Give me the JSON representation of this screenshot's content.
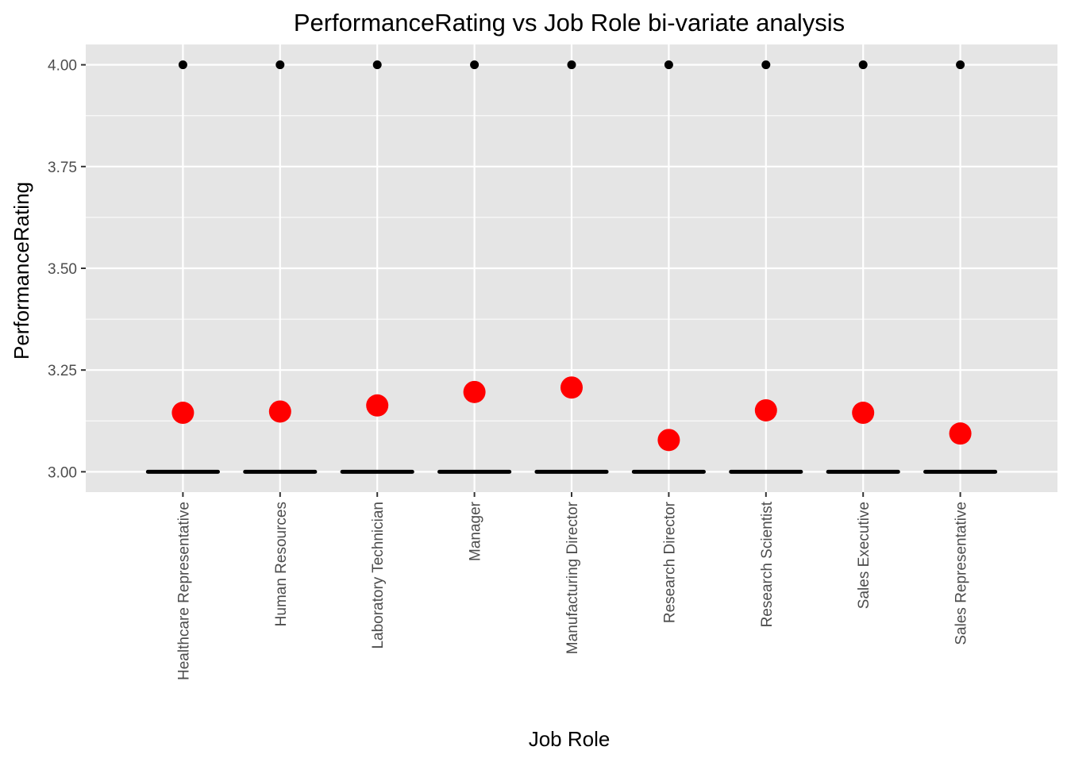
{
  "chart_data": {
    "type": "boxplot",
    "title": "PerformanceRating vs Job Role bi-variate analysis",
    "xlabel": "Job Role",
    "ylabel": "PerformanceRating",
    "ylim": [
      2.95,
      4.05
    ],
    "yticks": [
      "3.00",
      "3.25",
      "3.50",
      "3.75",
      "4.00"
    ],
    "grid": true,
    "legend": "none",
    "categories": [
      "Healthcare Representative",
      "Human Resources",
      "Laboratory Technician",
      "Manager",
      "Manufacturing Director",
      "Research Director",
      "Research Scientist",
      "Sales Executive",
      "Sales Representative"
    ],
    "series": [
      {
        "stat": "median",
        "values": [
          3,
          3,
          3,
          3,
          3,
          3,
          3,
          3,
          3
        ]
      },
      {
        "stat": "outlier",
        "values": [
          4,
          4,
          4,
          4,
          4,
          4,
          4,
          4,
          4
        ]
      },
      {
        "stat": "mean",
        "values": [
          3.145,
          3.148,
          3.163,
          3.196,
          3.207,
          3.078,
          3.151,
          3.145,
          3.094
        ]
      }
    ],
    "colors": {
      "panel": "#e5e5e5",
      "grid": "#ffffff",
      "median": "#000000",
      "outlier": "#000000",
      "mean": "#ff0000"
    }
  }
}
